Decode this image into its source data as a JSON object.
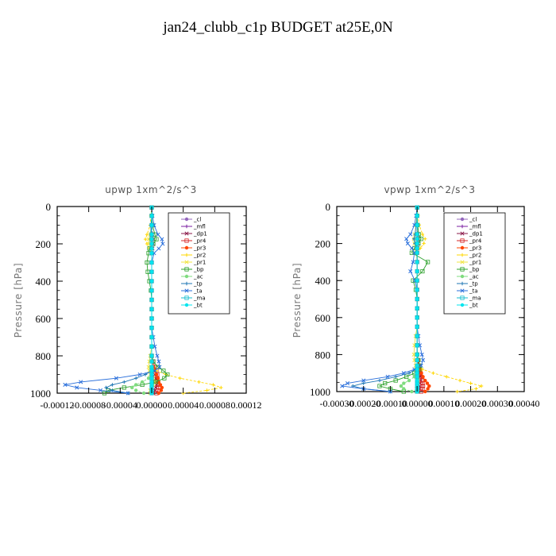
{
  "figure_title": "jan24_clubb_c1p  BUDGET at25E,0N",
  "chart_data": [
    {
      "type": "line",
      "title": "upwp  1xm^2/s^3",
      "ylabel": "Pressure [hPa]",
      "xlabel": "",
      "xlim": [
        -0.00012,
        0.00012
      ],
      "ylim": [
        1000,
        0
      ],
      "x_tick_labels": [
        "-0.00012",
        "-0.00008",
        "-0.00004",
        "0.00000",
        "0.00004",
        "0.00008",
        "0.00012"
      ],
      "x_tick_values": [
        -0.00012,
        -8e-05,
        -4e-05,
        0.0,
        4e-05,
        8e-05,
        0.00012
      ],
      "y_tick_labels": [
        "0",
        "200",
        "400",
        "600",
        "800",
        "1000"
      ],
      "y_tick_values": [
        0,
        200,
        400,
        600,
        800,
        1000
      ],
      "grid": false,
      "legend_position": "top-right",
      "pressure": [
        5,
        50,
        100,
        150,
        175,
        200,
        225,
        250,
        300,
        350,
        400,
        450,
        500,
        550,
        600,
        650,
        700,
        750,
        800,
        830,
        860,
        880,
        900,
        920,
        940,
        955,
        970,
        985,
        1000
      ],
      "series": [
        {
          "name": "_cl",
          "color": "#9467bd",
          "values": [
            0,
            0,
            0,
            0,
            0,
            0,
            0,
            0,
            0,
            0,
            0,
            0,
            0,
            0,
            0,
            0,
            0,
            0,
            0,
            0,
            0,
            0,
            0,
            0,
            0,
            0,
            0,
            0,
            0
          ]
        },
        {
          "name": "_mfl",
          "color": "#7b1fa2",
          "values": [
            0,
            0,
            0,
            0,
            0,
            0,
            0,
            0,
            0,
            0,
            0,
            0,
            0,
            0,
            0,
            0,
            0,
            0,
            0,
            0,
            0,
            0,
            0,
            0,
            0,
            0,
            0,
            0,
            0
          ]
        },
        {
          "name": "_dp1",
          "color": "#8b1a4a",
          "values": [
            0,
            0,
            0,
            1e-06,
            2e-06,
            2e-06,
            1e-06,
            0,
            0,
            0,
            0,
            0,
            0,
            0,
            0,
            0,
            0,
            0,
            0,
            1e-06,
            2e-06,
            3e-06,
            4e-06,
            5e-06,
            6e-06,
            6e-06,
            5e-06,
            4e-06,
            2e-06
          ]
        },
        {
          "name": "_pr4",
          "color": "#d62728",
          "values": [
            0,
            0,
            0,
            0,
            0,
            0,
            0,
            0,
            0,
            0,
            0,
            0,
            0,
            0,
            0,
            0,
            0,
            0,
            0,
            2e-06,
            4e-06,
            6e-06,
            7e-06,
            7e-06,
            7e-06,
            8e-06,
            9e-06,
            8e-06,
            6e-06
          ]
        },
        {
          "name": "_pr3",
          "color": "#ff4500",
          "values": [
            0,
            0,
            0,
            0,
            0,
            0,
            0,
            0,
            0,
            0,
            0,
            0,
            0,
            0,
            0,
            0,
            0,
            0,
            0,
            1e-06,
            2e-06,
            4e-06,
            6e-06,
            8e-06,
            9e-06,
            1.1e-05,
            1.3e-05,
            1.2e-05,
            9e-06
          ]
        },
        {
          "name": "_pr2",
          "color": "#ffd700",
          "values": [
            0,
            -1e-06,
            -2e-06,
            -6e-06,
            -8e-06,
            -6e-06,
            -3e-06,
            0,
            0,
            0,
            0,
            0,
            0,
            0,
            0,
            0,
            0,
            0,
            0,
            0,
            0,
            6e-06,
            1.8e-05,
            3.6e-05,
            6e-05,
            7.8e-05,
            8.8e-05,
            7e-05,
            4e-05
          ]
        },
        {
          "name": "_pr1",
          "color": "#f0e442",
          "values": [
            0,
            0,
            0,
            -2e-06,
            -4e-06,
            -3e-06,
            -1e-06,
            0,
            0,
            0,
            0,
            0,
            0,
            0,
            0,
            0,
            0,
            0,
            -2e-06,
            -3e-06,
            -4e-06,
            -3e-06,
            -2e-06,
            2e-06,
            4e-06,
            2e-06,
            0,
            -2e-06,
            -2e-06
          ]
        },
        {
          "name": "_bp",
          "color": "#2ca02c",
          "values": [
            0,
            0,
            1e-06,
            4e-06,
            6e-06,
            2e-06,
            -3e-06,
            -4e-06,
            -6e-06,
            -5e-06,
            -3e-06,
            -1e-06,
            0,
            0,
            0,
            0,
            0,
            0,
            0,
            2e-06,
            8e-06,
            1.5e-05,
            2e-05,
            1.6e-05,
            5e-06,
            -1.2e-05,
            -3.5e-05,
            -5.5e-05,
            -6e-05
          ]
        },
        {
          "name": "_ac",
          "color": "#7fdc7f",
          "values": [
            0,
            0,
            0,
            0,
            0,
            0,
            0,
            0,
            0,
            0,
            0,
            0,
            0,
            0,
            0,
            0,
            0,
            0,
            0,
            0,
            0,
            0,
            0,
            -4e-06,
            -1.2e-05,
            -2e-05,
            -2.5e-05,
            -2e-05,
            -1e-05
          ]
        },
        {
          "name": "_tp",
          "color": "#1f77b4",
          "values": [
            0,
            0,
            -1e-06,
            -1e-06,
            -1e-06,
            0,
            0,
            0,
            0,
            0,
            0,
            0,
            0,
            0,
            0,
            0,
            0,
            0,
            0,
            0,
            0,
            0,
            -8e-06,
            -2e-05,
            -3.5e-05,
            -5e-05,
            -5.8e-05,
            -5e-05,
            -3e-05
          ]
        },
        {
          "name": "_ta",
          "color": "#2a6fdb",
          "values": [
            0,
            1e-06,
            3e-06,
            8e-06,
            1.3e-05,
            1.4e-05,
            9e-06,
            3e-06,
            0,
            0,
            0,
            0,
            0,
            0,
            0,
            0,
            2e-06,
            4e-06,
            7e-06,
            9e-06,
            1e-05,
            4e-06,
            -1.5e-05,
            -4.5e-05,
            -9e-05,
            -0.00011,
            -9.5e-05,
            -6.5e-05,
            -3e-05
          ]
        },
        {
          "name": "_ma",
          "color": "#17becf",
          "values": [
            0,
            0,
            0,
            0,
            0,
            0,
            0,
            0,
            0,
            0,
            0,
            0,
            0,
            0,
            0,
            0,
            0,
            0,
            0,
            0,
            0,
            0,
            0,
            0,
            0,
            0,
            0,
            0,
            0
          ]
        },
        {
          "name": "_bt",
          "color": "#00e5ee",
          "values": [
            0,
            0,
            0,
            0,
            0,
            0,
            0,
            0,
            0,
            0,
            0,
            0,
            0,
            0,
            0,
            0,
            0,
            0,
            0,
            0,
            0,
            0,
            0,
            0,
            0,
            0,
            0,
            0,
            0
          ]
        }
      ]
    },
    {
      "type": "line",
      "title": "vpwp  1xm^2/s^3",
      "ylabel": "Pressure [hPa]",
      "xlabel": "",
      "xlim": [
        -0.0003,
        0.0004
      ],
      "ylim": [
        1000,
        0
      ],
      "x_tick_labels": [
        "-0.00030",
        "-0.00020",
        "-0.00010",
        "0.00000",
        "0.00010",
        "0.00020",
        "0.00030",
        "0.00040"
      ],
      "x_tick_values": [
        -0.0003,
        -0.0002,
        -0.0001,
        0.0,
        0.0001,
        0.0002,
        0.0003,
        0.0004
      ],
      "y_tick_labels": [
        "0",
        "200",
        "400",
        "600",
        "800",
        "1000"
      ],
      "y_tick_values": [
        0,
        200,
        400,
        600,
        800,
        1000
      ],
      "grid": false,
      "legend_position": "top-right",
      "pressure": [
        5,
        50,
        100,
        150,
        175,
        200,
        225,
        250,
        300,
        350,
        400,
        450,
        500,
        550,
        600,
        650,
        700,
        750,
        800,
        830,
        860,
        880,
        900,
        920,
        940,
        955,
        970,
        985,
        1000
      ],
      "series": [
        {
          "name": "_cl",
          "color": "#9467bd",
          "values": [
            0,
            0,
            0,
            0,
            0,
            0,
            0,
            0,
            0,
            0,
            0,
            0,
            0,
            0,
            0,
            0,
            0,
            0,
            0,
            0,
            0,
            0,
            0,
            0,
            0,
            0,
            0,
            0,
            0
          ]
        },
        {
          "name": "_mfl",
          "color": "#7b1fa2",
          "values": [
            0,
            0,
            0,
            0,
            0,
            0,
            0,
            0,
            0,
            0,
            0,
            0,
            0,
            0,
            0,
            0,
            0,
            0,
            0,
            0,
            0,
            0,
            0,
            0,
            0,
            0,
            0,
            0,
            0
          ]
        },
        {
          "name": "_dp1",
          "color": "#8b1a4a",
          "values": [
            0,
            0,
            0,
            3e-06,
            5e-06,
            4e-06,
            2e-06,
            0,
            0,
            0,
            0,
            0,
            0,
            0,
            0,
            0,
            0,
            0,
            0,
            2e-06,
            5e-06,
            8e-06,
            1e-05,
            1.2e-05,
            1.3e-05,
            1.2e-05,
            1e-05,
            8e-06,
            4e-06
          ]
        },
        {
          "name": "_pr4",
          "color": "#d62728",
          "values": [
            0,
            0,
            0,
            0,
            0,
            0,
            0,
            0,
            0,
            0,
            0,
            0,
            0,
            0,
            0,
            0,
            0,
            0,
            0,
            3e-06,
            6e-06,
            9e-06,
            1.2e-05,
            1.5e-05,
            1.8e-05,
            2e-05,
            2.2e-05,
            2e-05,
            1.5e-05
          ]
        },
        {
          "name": "_pr3",
          "color": "#ff4500",
          "values": [
            0,
            0,
            0,
            0,
            0,
            0,
            0,
            0,
            0,
            0,
            0,
            0,
            0,
            0,
            0,
            0,
            0,
            0,
            0,
            4e-06,
            8e-06,
            1.2e-05,
            1.6e-05,
            2.2e-05,
            3e-05,
            3.8e-05,
            4.5e-05,
            4e-05,
            3e-05
          ]
        },
        {
          "name": "_pr2",
          "color": "#ffd700",
          "values": [
            0,
            3e-06,
            8e-06,
            2e-05,
            3e-05,
            2.5e-05,
            1.2e-05,
            0,
            0,
            0,
            0,
            0,
            0,
            0,
            0,
            0,
            0,
            0,
            0,
            0,
            0,
            2e-05,
            6e-05,
            0.00011,
            0.00016,
            0.0002,
            0.00024,
            0.00022,
            0.00015
          ]
        },
        {
          "name": "_pr1",
          "color": "#f0e442",
          "values": [
            0,
            -2e-06,
            -4e-06,
            -8e-06,
            -1.2e-05,
            -1e-05,
            -6e-06,
            -3e-06,
            0,
            0,
            0,
            0,
            0,
            0,
            0,
            0,
            -6e-06,
            -1e-05,
            -1.2e-05,
            -1e-05,
            -6e-06,
            -4e-06,
            -2e-06,
            2e-06,
            4e-06,
            2e-06,
            0,
            -2e-06,
            -2e-06
          ]
        },
        {
          "name": "_bp",
          "color": "#2ca02c",
          "values": [
            0,
            0,
            2e-06,
            6e-06,
            1.5e-05,
            5e-06,
            -1e-05,
            -2e-05,
            4e-05,
            2e-05,
            -1.5e-05,
            -5e-06,
            0,
            0,
            0,
            0,
            0,
            0,
            0,
            5e-06,
            1e-05,
            8e-06,
            -1e-05,
            -4e-05,
            -8e-05,
            -0.00012,
            -0.00014,
            -0.0001,
            -5e-05
          ]
        },
        {
          "name": "_ac",
          "color": "#7fdc7f",
          "values": [
            0,
            0,
            0,
            0,
            0,
            0,
            0,
            0,
            0,
            0,
            0,
            0,
            0,
            0,
            0,
            0,
            0,
            0,
            0,
            0,
            0,
            0,
            0,
            -1e-05,
            -3e-05,
            -5e-05,
            -6e-05,
            -5e-05,
            -2e-05
          ]
        },
        {
          "name": "_tp",
          "color": "#1f77b4",
          "values": [
            0,
            0,
            -3e-06,
            -8e-06,
            -1.2e-05,
            -8e-06,
            -4e-06,
            0,
            0,
            0,
            0,
            0,
            0,
            0,
            0,
            0,
            0,
            0,
            0,
            0,
            0,
            -5e-06,
            -3e-05,
            -8e-05,
            -0.00014,
            -0.0002,
            -0.00024,
            -0.0002,
            -0.0001
          ]
        },
        {
          "name": "_ta",
          "color": "#2a6fdb",
          "values": [
            0,
            -4e-06,
            -1e-05,
            -2.5e-05,
            -4e-05,
            -3.5e-05,
            -2e-05,
            -1e-05,
            -1.5e-05,
            -2.5e-05,
            -8e-06,
            0,
            0,
            0,
            0,
            0,
            5e-06,
            1e-05,
            1.8e-05,
            2.2e-05,
            1.5e-05,
            -1e-05,
            -5e-05,
            -0.00011,
            -0.0002,
            -0.00026,
            -0.00028,
            -0.0002,
            -0.0001
          ]
        },
        {
          "name": "_ma",
          "color": "#17becf",
          "values": [
            0,
            0,
            0,
            0,
            0,
            0,
            0,
            0,
            0,
            0,
            0,
            0,
            0,
            0,
            0,
            0,
            0,
            0,
            0,
            0,
            0,
            0,
            0,
            0,
            0,
            0,
            0,
            0,
            0
          ]
        },
        {
          "name": "_bt",
          "color": "#00e5ee",
          "values": [
            0,
            0,
            0,
            0,
            0,
            0,
            0,
            0,
            0,
            0,
            0,
            0,
            0,
            0,
            0,
            0,
            0,
            0,
            0,
            0,
            0,
            0,
            0,
            0,
            0,
            0,
            0,
            0,
            0
          ]
        }
      ]
    }
  ]
}
